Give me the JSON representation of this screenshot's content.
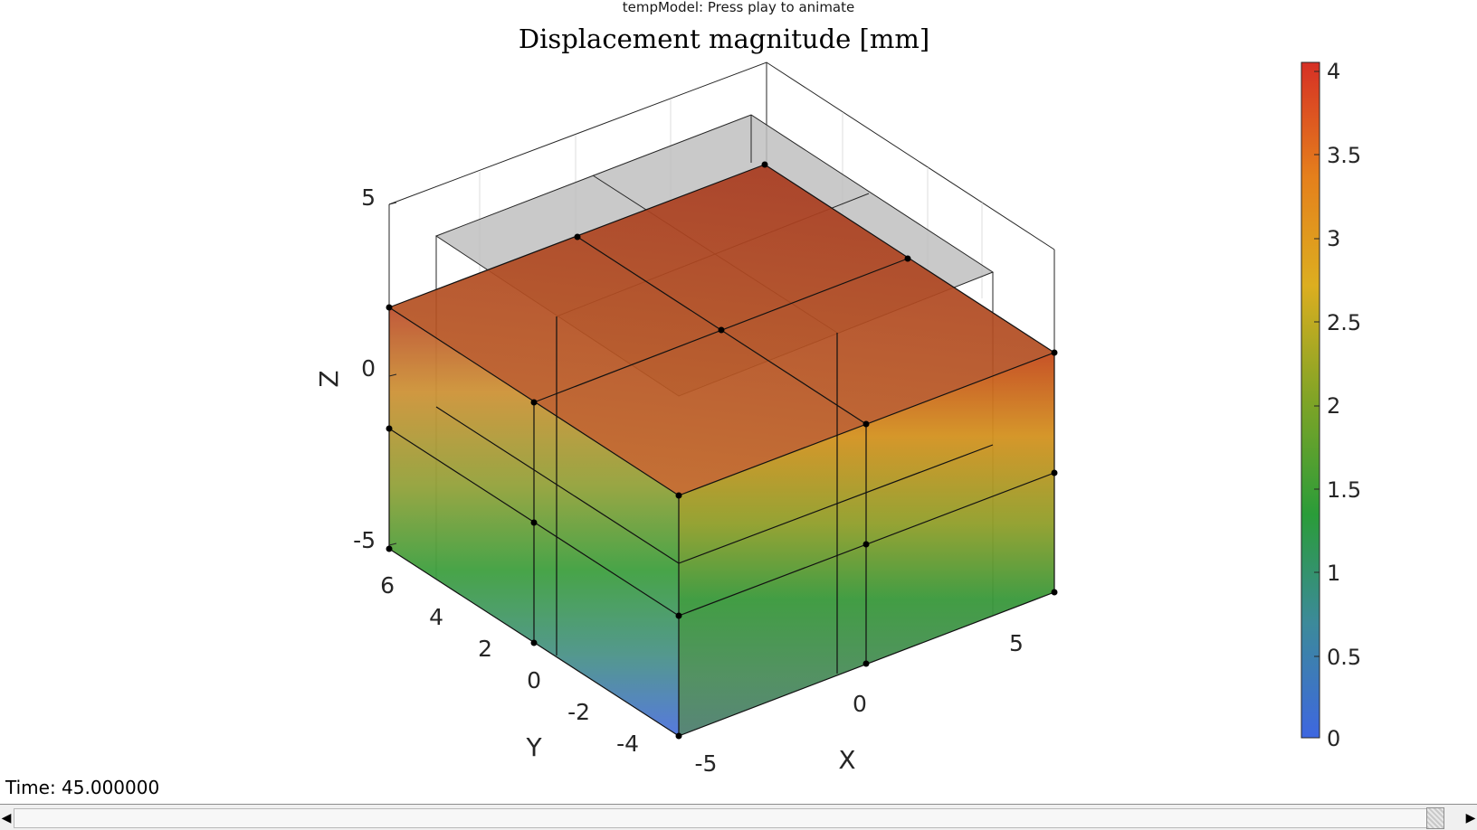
{
  "window": {
    "title": "tempModel: Press play to animate"
  },
  "plot": {
    "title": "Displacement magnitude [mm]",
    "axes": {
      "x": {
        "label": "X",
        "ticks": [
          "-5",
          "0",
          "5"
        ]
      },
      "y": {
        "label": "Y",
        "ticks": [
          "-4",
          "-2",
          "0",
          "2",
          "4",
          "6"
        ]
      },
      "z": {
        "label": "Z",
        "ticks": [
          "-5",
          "0",
          "5"
        ]
      }
    },
    "colorbar": {
      "ticks": [
        "0",
        "0.5",
        "1",
        "1.5",
        "2",
        "2.5",
        "3",
        "3.5",
        "4"
      ],
      "colors": [
        "#3e67e0",
        "#3c8a9a",
        "#2a9c39",
        "#80a426",
        "#dcae20",
        "#e5801c",
        "#d63025"
      ]
    }
  },
  "time_readout": {
    "text": "Time: 45.000000"
  },
  "slider": {
    "left_arrow": "◀",
    "right_arrow": "▶",
    "value_fraction": 1.0
  }
}
